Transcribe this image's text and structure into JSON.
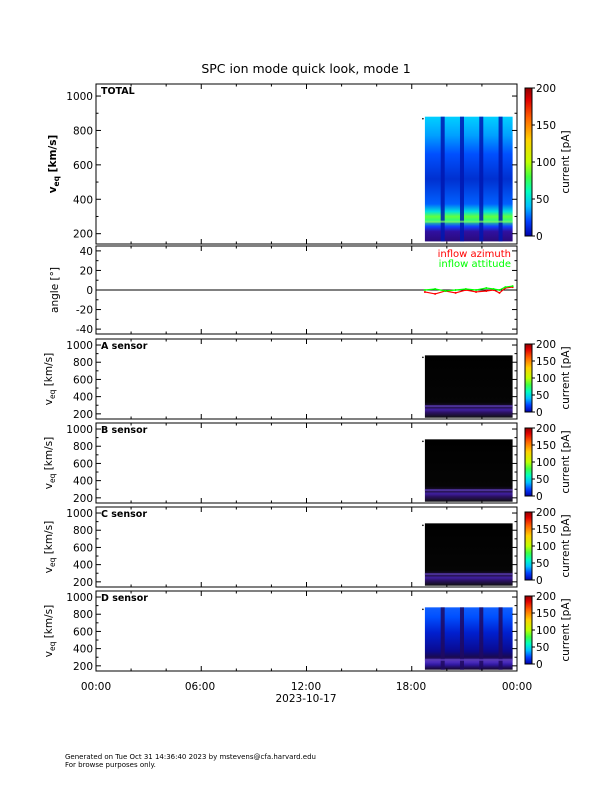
{
  "title": "SPC ion mode quick look, mode 1",
  "footer": {
    "line1": "Generated on Tue Oct 31 14:36:40 2023 by mstevens@cfa.harvard.edu",
    "line2": "For browse purposes only."
  },
  "colorbar": {
    "label": "current [pA]",
    "range": [
      0,
      200
    ],
    "ticks": [
      0,
      50,
      100,
      150,
      200
    ],
    "colors": [
      "#0000aa",
      "#0040ff",
      "#00c0ff",
      "#00ffc0",
      "#40ff40",
      "#c0ff00",
      "#ffd000",
      "#ff6000",
      "#e00000",
      "#900000"
    ]
  },
  "chart_data": [
    {
      "type": "heatmap",
      "panel": "TOTAL",
      "label": "TOTAL",
      "ylabel_main": "v",
      "ylabel_sub": "eq",
      "ylabel_unit": " [km/s]",
      "yticks": [
        200,
        400,
        600,
        800,
        1000
      ],
      "ylim": [
        140,
        1070
      ],
      "data_time_range": [
        "18:45",
        "23:45"
      ],
      "v_range": [
        155,
        880
      ],
      "peak_v": 270,
      "peak_current_pA": 50
    },
    {
      "type": "line",
      "panel": "angle",
      "ylabel": "angle [°]",
      "yticks": [
        -40,
        -20,
        0,
        20,
        40
      ],
      "ylim": [
        -45,
        45
      ],
      "series": [
        {
          "name": "inflow azimuth",
          "color": "#ff0000",
          "x": [
            "18:45",
            "19:20",
            "19:55",
            "20:30",
            "21:05",
            "21:40",
            "22:15",
            "22:40",
            "23:00",
            "23:20",
            "23:45"
          ],
          "values": [
            -2,
            -4,
            -1,
            -3,
            0,
            -2,
            -1,
            0,
            -3,
            2,
            3
          ]
        },
        {
          "name": "inflow attitude",
          "color": "#00ff00",
          "x": [
            "18:45",
            "19:20",
            "19:55",
            "20:30",
            "21:05",
            "21:40",
            "22:15",
            "22:40",
            "23:00",
            "23:20",
            "23:45"
          ],
          "values": [
            0,
            1,
            -1,
            0,
            1,
            0,
            2,
            1,
            0,
            3,
            4
          ]
        }
      ]
    },
    {
      "type": "heatmap",
      "panel": "A sensor",
      "label": "A sensor",
      "ylabel_main": "v",
      "ylabel_sub": "eq",
      "ylabel_unit": " [km/s]",
      "yticks": [
        200,
        400,
        600,
        800,
        1000
      ],
      "ylim": [
        140,
        1070
      ],
      "data_time_range": [
        "18:45",
        "23:45"
      ],
      "v_range": [
        155,
        880
      ],
      "peak_v": 290
    },
    {
      "type": "heatmap",
      "panel": "B sensor",
      "label": "B sensor",
      "ylabel_main": "v",
      "ylabel_sub": "eq",
      "ylabel_unit": " [km/s]",
      "yticks": [
        200,
        400,
        600,
        800,
        1000
      ],
      "ylim": [
        140,
        1070
      ],
      "data_time_range": [
        "18:45",
        "23:45"
      ],
      "v_range": [
        155,
        880
      ],
      "peak_v": 290
    },
    {
      "type": "heatmap",
      "panel": "C sensor",
      "label": "C sensor",
      "ylabel_main": "v",
      "ylabel_sub": "eq",
      "ylabel_unit": " [km/s]",
      "yticks": [
        200,
        400,
        600,
        800,
        1000
      ],
      "ylim": [
        140,
        1070
      ],
      "data_time_range": [
        "18:45",
        "23:45"
      ],
      "v_range": [
        155,
        880
      ],
      "peak_v": 290
    },
    {
      "type": "heatmap",
      "panel": "D sensor",
      "label": "D sensor",
      "ylabel_main": "v",
      "ylabel_sub": "eq",
      "ylabel_unit": " [km/s]",
      "yticks": [
        200,
        400,
        600,
        800,
        1000
      ],
      "ylim": [
        140,
        1070
      ],
      "data_time_range": [
        "18:45",
        "23:45"
      ],
      "v_range": [
        155,
        880
      ],
      "peak_v": 270
    }
  ],
  "xaxis": {
    "ticks": [
      "00:00",
      "06:00",
      "12:00",
      "18:00",
      "00:00"
    ],
    "date": "2023-10-17"
  }
}
